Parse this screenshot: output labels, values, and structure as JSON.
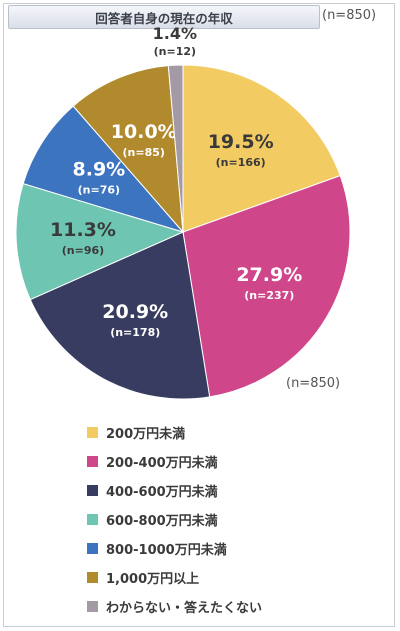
{
  "chart_data": {
    "type": "pie",
    "title": "回答者自身の現在の年収",
    "sample_label": "(n=850)",
    "sample_label_bottom": "(n=850)",
    "start": "12 o'clock",
    "direction": "clockwise",
    "slices": [
      {
        "label": "200万円未満",
        "value": 19.5,
        "pct": "19.5%",
        "n": "(n=166)",
        "color": "#f2cb63"
      },
      {
        "label": "200-400万円未満",
        "value": 27.9,
        "pct": "27.9%",
        "n": "(n=237)",
        "color": "#d0468a"
      },
      {
        "label": "400-600万円未満",
        "value": 20.9,
        "pct": "20.9%",
        "n": "(n=178)",
        "color": "#383c60"
      },
      {
        "label": "600-800万円未満",
        "value": 11.3,
        "pct": "11.3%",
        "n": "(n=96)",
        "color": "#6ec6b2"
      },
      {
        "label": "800-1000万円未満",
        "value": 8.9,
        "pct": "8.9%",
        "n": "(n=76)",
        "color": "#3d74c0"
      },
      {
        "label": "1,000万円以上",
        "value": 10.0,
        "pct": "10.0%",
        "n": "(n=85)",
        "color": "#b28a2e"
      },
      {
        "label": "わからない・答えたくない",
        "value": 1.4,
        "pct": "1.4%",
        "n": "(n=12)",
        "color": "#a49aa6"
      }
    ],
    "legend_position": "bottom-left"
  }
}
